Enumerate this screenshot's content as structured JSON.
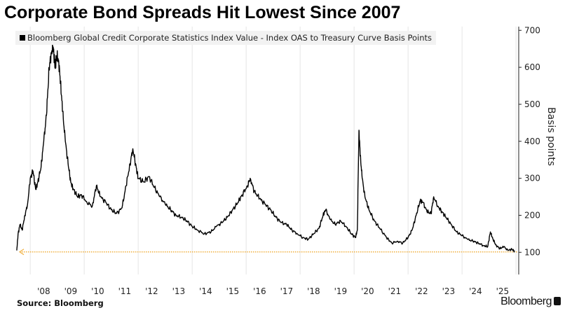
{
  "chart_data": {
    "type": "line",
    "title": "Corporate Bond Spreads Hit Lowest Since 2007",
    "legend": "Bloomberg Global Credit Corporate Statistics Index Value - Index OAS to Treasury Curve Basis Points",
    "legend_placement": "top-left",
    "xlabel": "",
    "ylabel": "Basis points",
    "ylim": [
      40,
      710
    ],
    "yticks": [
      100,
      200,
      300,
      400,
      500,
      600,
      700
    ],
    "xlim": [
      2007.45,
      2026.1
    ],
    "xtick_labels": [
      "'08",
      "'09",
      "'10",
      "'11",
      "'12",
      "'13",
      "'14",
      "'15",
      "'16",
      "'17",
      "'18",
      "'19",
      "'20",
      "'21",
      "'22",
      "'23",
      "'24",
      "'25"
    ],
    "grid": "vertical",
    "reference_line": {
      "value": 101,
      "color": "#f0b040",
      "style": "dotted"
    },
    "series": [
      {
        "name": "Index OAS",
        "color": "#000000",
        "x": [
          2007.5,
          2007.55,
          2007.62,
          2007.7,
          2007.8,
          2007.9,
          2008.0,
          2008.1,
          2008.2,
          2008.28,
          2008.4,
          2008.5,
          2008.6,
          2008.7,
          2008.78,
          2008.85,
          2008.92,
          2008.97,
          2009.05,
          2009.12,
          2009.2,
          2009.3,
          2009.4,
          2009.5,
          2009.6,
          2009.75,
          2009.9,
          2010.1,
          2010.3,
          2010.45,
          2010.6,
          2010.8,
          2011.0,
          2011.2,
          2011.4,
          2011.55,
          2011.7,
          2011.8,
          2011.9,
          2012.0,
          2012.2,
          2012.4,
          2012.6,
          2012.8,
          2013.0,
          2013.2,
          2013.4,
          2013.6,
          2013.8,
          2014.0,
          2014.2,
          2014.45,
          2014.7,
          2014.9,
          2015.1,
          2015.3,
          2015.5,
          2015.7,
          2015.85,
          2016.05,
          2016.15,
          2016.3,
          2016.5,
          2016.7,
          2016.9,
          2017.1,
          2017.3,
          2017.5,
          2017.7,
          2017.9,
          2018.1,
          2018.3,
          2018.5,
          2018.7,
          2018.85,
          2018.95,
          2019.1,
          2019.3,
          2019.5,
          2019.7,
          2019.9,
          2020.05,
          2020.12,
          2020.18,
          2020.23,
          2020.3,
          2020.4,
          2020.55,
          2020.75,
          2020.95,
          2021.2,
          2021.4,
          2021.6,
          2021.8,
          2022.0,
          2022.15,
          2022.3,
          2022.45,
          2022.55,
          2022.7,
          2022.85,
          2022.95,
          2023.1,
          2023.25,
          2023.4,
          2023.6,
          2023.8,
          2024.0,
          2024.2,
          2024.4,
          2024.6,
          2024.8,
          2024.95,
          2025.05,
          2025.15,
          2025.25,
          2025.4,
          2025.55,
          2025.7,
          2025.85,
          2025.95
        ],
        "y": [
          105,
          150,
          175,
          160,
          200,
          230,
          300,
          320,
          270,
          290,
          330,
          400,
          470,
          600,
          640,
          655,
          600,
          630,
          620,
          560,
          480,
          400,
          340,
          290,
          270,
          250,
          255,
          235,
          225,
          280,
          250,
          235,
          215,
          205,
          220,
          280,
          340,
          380,
          340,
          300,
          290,
          305,
          275,
          250,
          230,
          215,
          200,
          195,
          185,
          170,
          160,
          150,
          155,
          170,
          180,
          195,
          215,
          235,
          255,
          280,
          300,
          265,
          245,
          230,
          215,
          195,
          180,
          175,
          160,
          150,
          140,
          135,
          150,
          165,
          200,
          215,
          190,
          175,
          185,
          170,
          150,
          140,
          160,
          430,
          360,
          300,
          250,
          215,
          185,
          165,
          140,
          125,
          130,
          125,
          140,
          160,
          200,
          240,
          235,
          210,
          205,
          250,
          225,
          210,
          195,
          175,
          155,
          145,
          135,
          130,
          125,
          118,
          115,
          155,
          135,
          120,
          110,
          115,
          105,
          108,
          102
        ]
      }
    ]
  },
  "source": "Source: Bloomberg",
  "brand": "Bloomberg"
}
